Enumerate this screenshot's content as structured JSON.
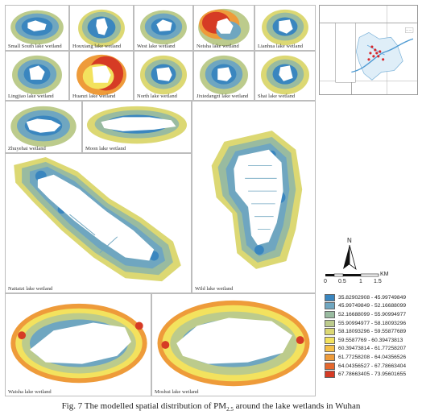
{
  "panels": [
    {
      "label": "Small South lake wetland",
      "style": "ring"
    },
    {
      "label": "Houxiang lake wetland",
      "style": "ring"
    },
    {
      "label": "West lake wetland",
      "style": "ring"
    },
    {
      "label": "Neisha lake wetland",
      "style": "hot"
    },
    {
      "label": "Lianhua lake wetland",
      "style": "ring"
    },
    {
      "label": "Lingjiao lake wetland",
      "style": "ring"
    },
    {
      "label": "Huanzi lake wetland",
      "style": "hot"
    },
    {
      "label": "North lake wetland",
      "style": "ring"
    },
    {
      "label": "Jixiedangzi lake wetland",
      "style": "ring"
    },
    {
      "label": "Shai lake wetland",
      "style": "ring"
    },
    {
      "label": "Zhuyehai wetland",
      "style": "ring"
    },
    {
      "label": "Moon lake wetland",
      "style": "ring"
    },
    {
      "label": "Naitaizi lake wetland",
      "style": "big"
    },
    {
      "label": "Wild lake wetland",
      "style": "big"
    },
    {
      "label": "Waisha lake wetland",
      "style": "warm"
    },
    {
      "label": "Moshui lake wetland",
      "style": "warm"
    }
  ],
  "north_label": "N",
  "scale": {
    "ticks": [
      "0",
      "0.5",
      "1",
      "1.5"
    ],
    "unit": "KM"
  },
  "legend": [
    {
      "range": "35.82902908 - 45.99749849",
      "color": "#3a86bf"
    },
    {
      "range": "45.99749849 - 52.16688099",
      "color": "#6fa6c0"
    },
    {
      "range": "52.16688099 - 55.90994977",
      "color": "#99bba0"
    },
    {
      "range": "55.90994977 - 58.18093296",
      "color": "#bccb8c"
    },
    {
      "range": "58.18093296 - 59.55877689",
      "color": "#dcd873"
    },
    {
      "range": "59.5587769 - 60.39473813",
      "color": "#f3e25e"
    },
    {
      "range": "60.39473814 - 61.77258207",
      "color": "#f5c049"
    },
    {
      "range": "61.77258208 - 64.04356526",
      "color": "#ee9b3a"
    },
    {
      "range": "64.04356527 - 67.78663404",
      "color": "#e5672d"
    },
    {
      "range": "67.78663405 - 73.95601655",
      "color": "#d63b25"
    }
  ],
  "caption": "Fig. 7 The modelled spatial distribution of PM2.5 around the lake wetlands in Wuhan"
}
